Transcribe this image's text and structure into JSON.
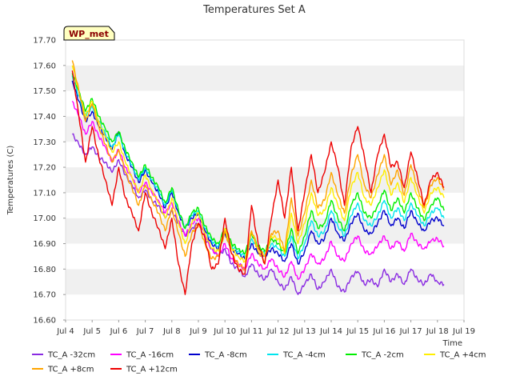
{
  "chart_data": {
    "type": "line",
    "title": "Temperatures Set A",
    "xlabel": "Time",
    "ylabel": "Temperatures (C)",
    "badge": "WP_met",
    "ylim": [
      16.6,
      17.7
    ],
    "xlim": [
      4,
      19
    ],
    "grid": "horizontal bands",
    "legend_position": "bottom",
    "yticks": [
      "16.60",
      "16.70",
      "16.80",
      "16.90",
      "17.00",
      "17.10",
      "17.20",
      "17.30",
      "17.40",
      "17.50",
      "17.60",
      "17.70"
    ],
    "xticks": [
      {
        "label": "Jul 4",
        "x": 4
      },
      {
        "label": "Jul 5",
        "x": 5
      },
      {
        "label": "Jul 6",
        "x": 6
      },
      {
        "label": "Jul 7",
        "x": 7
      },
      {
        "label": "Jul 8",
        "x": 8
      },
      {
        "label": "Jul 9",
        "x": 9
      },
      {
        "label": "Jul 10",
        "x": 10
      },
      {
        "label": "Jul 11",
        "x": 11
      },
      {
        "label": "Jul 12",
        "x": 12
      },
      {
        "label": "Jul 13",
        "x": 13
      },
      {
        "label": "Jul 14",
        "x": 14
      },
      {
        "label": "Jul 15",
        "x": 15
      },
      {
        "label": "Jul 16",
        "x": 16
      },
      {
        "label": "Jul 17",
        "x": 17
      },
      {
        "label": "Jul 18",
        "x": 18
      },
      {
        "label": "Jul 19",
        "x": 19
      }
    ],
    "x": [
      4.25,
      4.5,
      4.75,
      5.0,
      5.25,
      5.5,
      5.75,
      6.0,
      6.25,
      6.5,
      6.75,
      7.0,
      7.25,
      7.5,
      7.75,
      8.0,
      8.25,
      8.5,
      8.75,
      9.0,
      9.25,
      9.5,
      9.75,
      10.0,
      10.25,
      10.5,
      10.75,
      11.0,
      11.25,
      11.5,
      11.75,
      12.0,
      12.25,
      12.5,
      12.75,
      13.0,
      13.25,
      13.5,
      13.75,
      14.0,
      14.25,
      14.5,
      14.75,
      15.0,
      15.25,
      15.5,
      15.75,
      16.0,
      16.25,
      16.5,
      16.75,
      17.0,
      17.25,
      17.5,
      17.75,
      18.0,
      18.25
    ],
    "series": [
      {
        "name": "TC_A -32cm",
        "color": "#8a2be2",
        "values": [
          17.33,
          17.29,
          17.25,
          17.28,
          17.24,
          17.22,
          17.18,
          17.23,
          17.17,
          17.13,
          17.08,
          17.11,
          17.07,
          17.05,
          17.0,
          17.03,
          16.98,
          16.93,
          16.96,
          16.98,
          16.92,
          16.88,
          16.85,
          16.88,
          16.82,
          16.8,
          16.77,
          16.82,
          16.78,
          16.76,
          16.8,
          16.75,
          16.72,
          16.77,
          16.7,
          16.74,
          16.78,
          16.72,
          16.75,
          16.8,
          16.73,
          16.71,
          16.77,
          16.79,
          16.74,
          16.76,
          16.73,
          16.8,
          16.75,
          16.78,
          16.74,
          16.8,
          16.76,
          16.74,
          16.78,
          16.75,
          16.74
        ]
      },
      {
        "name": "TC_A -16cm",
        "color": "#ff00ff",
        "values": [
          17.46,
          17.4,
          17.33,
          17.38,
          17.32,
          17.28,
          17.22,
          17.27,
          17.2,
          17.16,
          17.1,
          17.14,
          17.1,
          17.07,
          17.02,
          17.06,
          16.99,
          16.93,
          16.98,
          17.0,
          16.93,
          16.88,
          16.85,
          16.9,
          16.84,
          16.82,
          16.8,
          16.86,
          16.82,
          16.8,
          16.84,
          16.8,
          16.77,
          16.83,
          16.76,
          16.8,
          16.86,
          16.82,
          16.84,
          16.91,
          16.85,
          16.83,
          16.9,
          16.93,
          16.87,
          16.86,
          16.89,
          16.93,
          16.88,
          16.91,
          16.87,
          16.94,
          16.9,
          16.88,
          16.91,
          16.92,
          16.89
        ]
      },
      {
        "name": "TC_A -8cm",
        "color": "#0000cd",
        "values": [
          17.54,
          17.46,
          17.38,
          17.42,
          17.36,
          17.32,
          17.27,
          17.34,
          17.25,
          17.2,
          17.14,
          17.19,
          17.14,
          17.1,
          17.04,
          17.1,
          17.02,
          16.96,
          17.0,
          17.02,
          16.95,
          16.9,
          16.88,
          16.94,
          16.88,
          16.86,
          16.84,
          16.9,
          16.86,
          16.85,
          16.88,
          16.86,
          16.83,
          16.9,
          16.82,
          16.87,
          16.95,
          16.9,
          16.92,
          17.0,
          16.94,
          16.91,
          16.98,
          17.02,
          16.95,
          16.94,
          16.98,
          17.03,
          16.97,
          17.0,
          16.96,
          17.03,
          16.98,
          16.95,
          16.99,
          17.0,
          16.97
        ]
      },
      {
        "name": "TC_A -4cm",
        "color": "#00e5ee",
        "values": [
          17.56,
          17.48,
          17.4,
          17.44,
          17.38,
          17.33,
          17.28,
          17.33,
          17.26,
          17.21,
          17.15,
          17.2,
          17.15,
          17.11,
          17.05,
          17.11,
          17.03,
          16.96,
          17.01,
          17.03,
          16.96,
          16.91,
          16.89,
          16.95,
          16.89,
          16.87,
          16.85,
          16.92,
          16.88,
          16.86,
          16.9,
          16.88,
          16.85,
          16.93,
          16.84,
          16.9,
          16.99,
          16.93,
          16.95,
          17.03,
          16.97,
          16.93,
          17.01,
          17.06,
          16.99,
          16.97,
          17.01,
          17.07,
          17.0,
          17.04,
          16.99,
          17.06,
          17.01,
          16.97,
          17.02,
          17.04,
          17.0
        ]
      },
      {
        "name": "TC_A -2cm",
        "color": "#00ee00",
        "values": [
          17.57,
          17.5,
          17.42,
          17.47,
          17.4,
          17.35,
          17.3,
          17.34,
          17.27,
          17.22,
          17.16,
          17.21,
          17.16,
          17.12,
          17.06,
          17.12,
          17.03,
          16.96,
          17.02,
          17.04,
          16.97,
          16.92,
          16.9,
          16.96,
          16.9,
          16.88,
          16.86,
          16.94,
          16.89,
          16.87,
          16.92,
          16.9,
          16.86,
          16.96,
          16.86,
          16.93,
          17.03,
          16.96,
          16.98,
          17.07,
          17.0,
          16.95,
          17.05,
          17.1,
          17.02,
          17.0,
          17.05,
          17.11,
          17.03,
          17.08,
          17.02,
          17.1,
          17.04,
          16.99,
          17.05,
          17.08,
          17.03
        ]
      },
      {
        "name": "TC_A +4cm",
        "color": "#ffee00",
        "values": [
          17.6,
          17.5,
          17.4,
          17.46,
          17.38,
          17.32,
          17.26,
          17.3,
          17.22,
          17.16,
          17.1,
          17.17,
          17.11,
          17.06,
          17.0,
          17.08,
          16.98,
          16.9,
          16.98,
          17.02,
          16.94,
          16.88,
          16.87,
          16.96,
          16.88,
          16.85,
          16.83,
          16.95,
          16.88,
          16.85,
          16.93,
          16.92,
          16.86,
          17.02,
          16.9,
          16.98,
          17.1,
          17.01,
          17.03,
          17.12,
          17.05,
          16.99,
          17.12,
          17.18,
          17.08,
          17.05,
          17.12,
          17.19,
          17.09,
          17.14,
          17.06,
          17.16,
          17.09,
          17.02,
          17.1,
          17.12,
          17.08
        ]
      },
      {
        "name": "TC_A +8cm",
        "color": "#ffa500",
        "values": [
          17.62,
          17.5,
          17.38,
          17.45,
          17.36,
          17.29,
          17.22,
          17.27,
          17.18,
          17.12,
          17.05,
          17.13,
          17.07,
          17.02,
          16.95,
          17.04,
          16.94,
          16.85,
          16.94,
          16.98,
          16.9,
          16.84,
          16.85,
          16.95,
          16.86,
          16.82,
          16.8,
          16.95,
          16.87,
          16.83,
          16.94,
          16.95,
          16.87,
          17.08,
          16.93,
          17.02,
          17.15,
          17.04,
          17.07,
          17.18,
          17.09,
          17.02,
          17.17,
          17.25,
          17.13,
          17.08,
          17.17,
          17.25,
          17.13,
          17.19,
          17.09,
          17.21,
          17.12,
          17.04,
          17.13,
          17.16,
          17.11
        ]
      },
      {
        "name": "TC_A +12cm",
        "color": "#ee0000",
        "values": [
          17.58,
          17.4,
          17.22,
          17.36,
          17.24,
          17.15,
          17.05,
          17.2,
          17.08,
          17.02,
          16.95,
          17.1,
          17.02,
          16.96,
          16.88,
          17.0,
          16.82,
          16.7,
          16.9,
          16.98,
          16.92,
          16.8,
          16.82,
          17.0,
          16.86,
          16.8,
          16.78,
          17.05,
          16.9,
          16.82,
          17.0,
          17.15,
          17.0,
          17.2,
          16.95,
          17.1,
          17.25,
          17.1,
          17.18,
          17.3,
          17.2,
          17.05,
          17.28,
          17.36,
          17.24,
          17.1,
          17.25,
          17.33,
          17.2,
          17.22,
          17.12,
          17.26,
          17.16,
          17.05,
          17.15,
          17.18,
          17.12
        ]
      }
    ]
  }
}
